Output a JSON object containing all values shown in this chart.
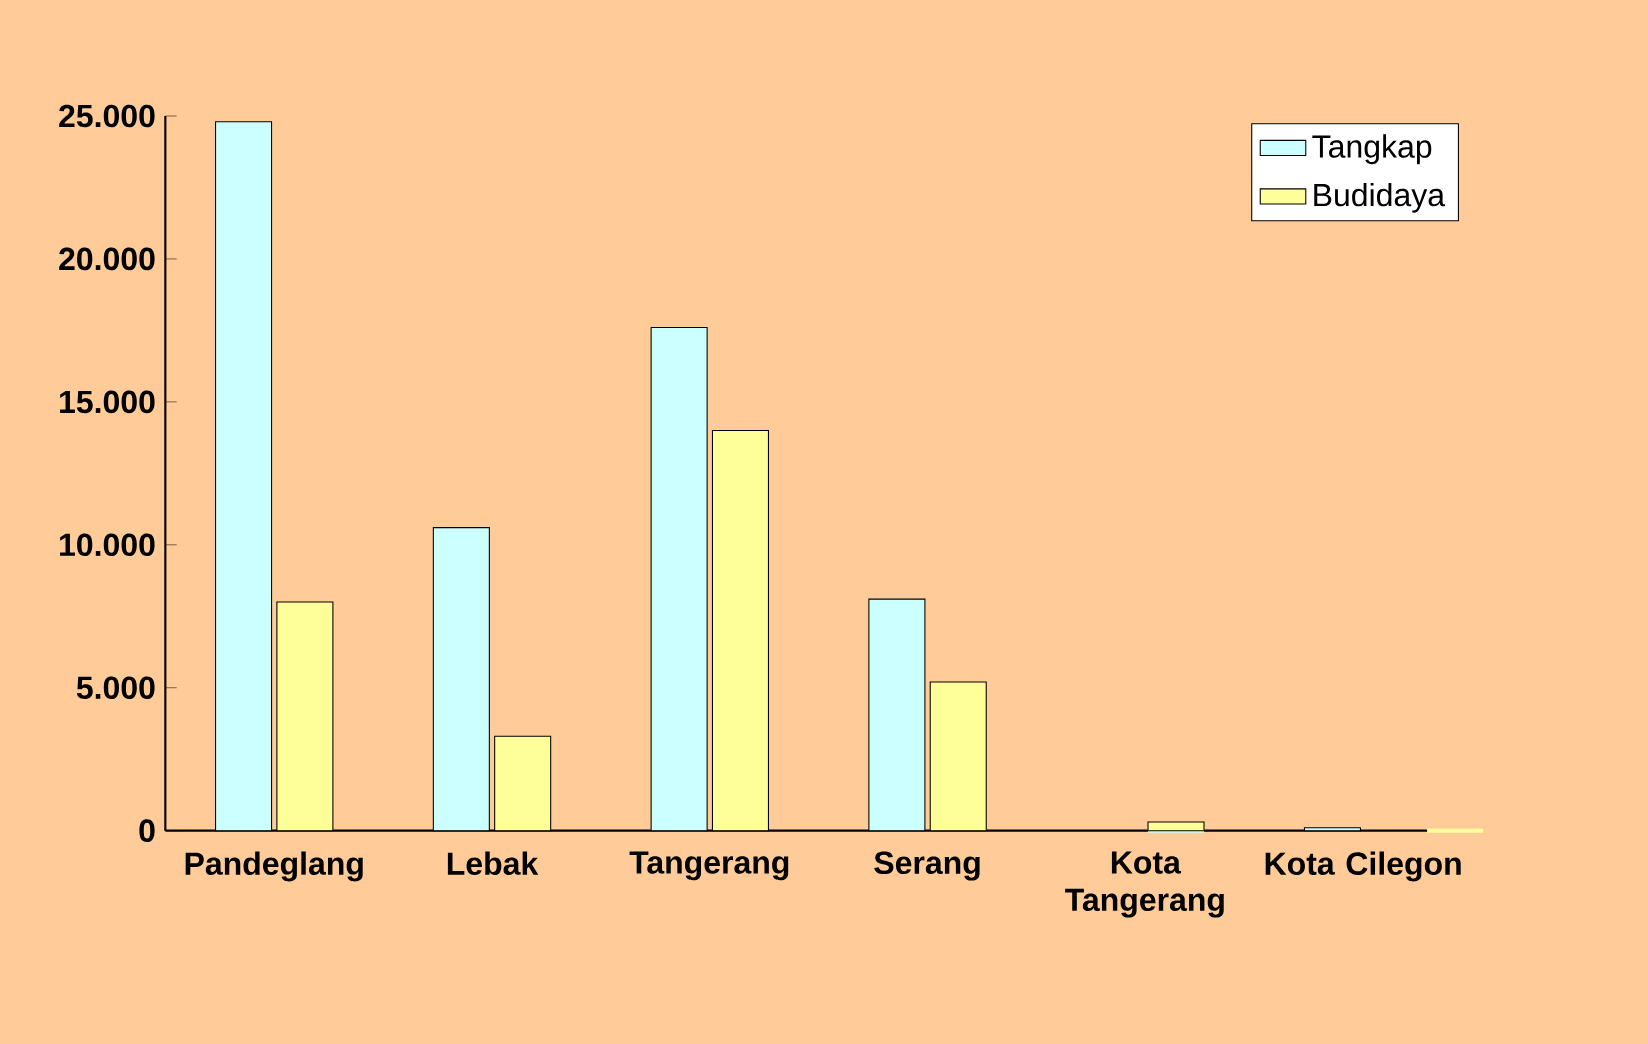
{
  "chart_data": {
    "type": "bar",
    "categories": [
      "Pandeglang",
      "Lebak",
      "Tangerang",
      "Serang",
      "Kota Tangerang",
      "Kota Cilegon"
    ],
    "series": [
      {
        "name": "Tangkap",
        "color": "#ccffff",
        "values": [
          24800,
          10600,
          17600,
          8100,
          0,
          100
        ]
      },
      {
        "name": "Budidaya",
        "color": "#ffff99",
        "values": [
          8000,
          3300,
          14000,
          5200,
          300,
          0
        ]
      }
    ],
    "ylim": [
      0,
      25000
    ],
    "yticks": [
      {
        "value": 0,
        "label": "0"
      },
      {
        "value": 5000,
        "label": "5.000"
      },
      {
        "value": 10000,
        "label": "10.000"
      },
      {
        "value": 15000,
        "label": "15.000"
      },
      {
        "value": 20000,
        "label": "20.000"
      },
      {
        "value": 25000,
        "label": "25.000"
      }
    ],
    "legend": "top right"
  }
}
